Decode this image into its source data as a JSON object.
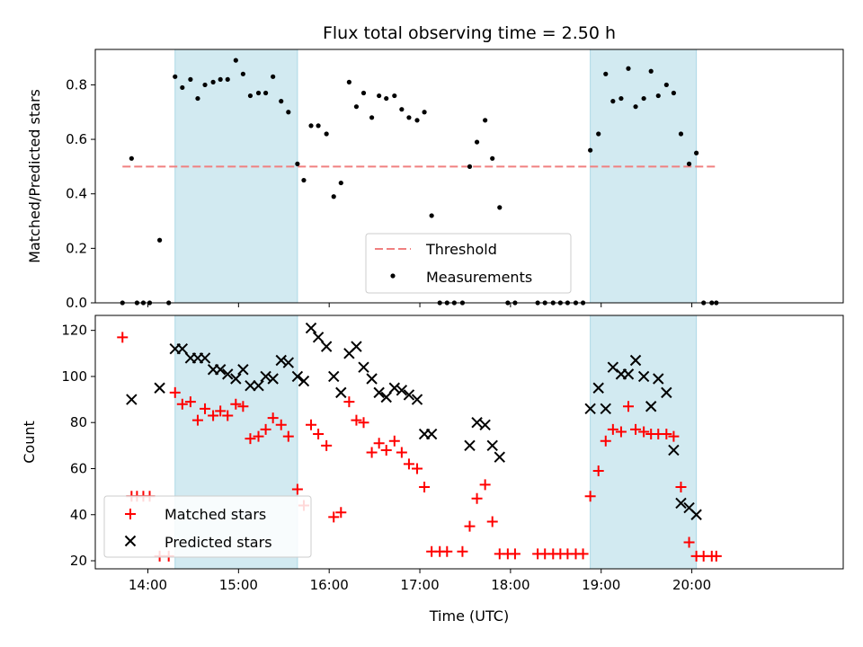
{
  "chart_data": [
    {
      "type": "scatter",
      "title": "Flux total observing time = 2.50 h",
      "xlabel": "",
      "ylabel": "Matched/Predicted stars",
      "ylim": [
        0,
        0.93
      ],
      "yticks": [
        0.0,
        0.2,
        0.4,
        0.6,
        0.8
      ],
      "ytick_labels": [
        "0.0",
        "0.2",
        "0.4",
        "0.6",
        "0.8"
      ],
      "xlim_hours": [
        13.42,
        21.67
      ],
      "xtick_hours": [
        14,
        15,
        16,
        17,
        18,
        19,
        20
      ],
      "shaded_intervals_hours": [
        [
          14.3,
          15.65
        ],
        [
          18.88,
          20.05
        ]
      ],
      "shade_color": "#add8e6",
      "threshold": {
        "name": "Threshold",
        "value": 0.5,
        "x_range_hours": [
          13.72,
          20.27
        ],
        "color": "#f08080"
      },
      "legend_position": "lower center",
      "series": [
        {
          "name": "Measurements",
          "color": "#000000",
          "x": [
            13.72,
            13.82,
            13.88,
            13.95,
            14.02,
            14.13,
            14.23,
            14.3,
            14.38,
            14.47,
            14.55,
            14.63,
            14.72,
            14.8,
            14.88,
            14.97,
            15.05,
            15.13,
            15.22,
            15.3,
            15.38,
            15.47,
            15.55,
            15.65,
            15.72,
            15.8,
            15.88,
            15.97,
            16.05,
            16.13,
            16.22,
            16.3,
            16.38,
            16.47,
            16.55,
            16.63,
            16.72,
            16.8,
            16.88,
            16.97,
            17.05,
            17.13,
            17.22,
            17.3,
            17.38,
            17.47,
            17.55,
            17.63,
            17.72,
            17.8,
            17.88,
            17.97,
            18.05,
            18.3,
            18.38,
            18.47,
            18.55,
            18.63,
            18.72,
            18.8,
            18.88,
            18.97,
            19.05,
            19.13,
            19.22,
            19.3,
            19.38,
            19.47,
            19.55,
            19.63,
            19.72,
            19.8,
            19.88,
            19.97,
            20.05,
            20.13,
            20.22,
            20.27
          ],
          "y": [
            0.0,
            0.53,
            0.0,
            0.0,
            0.0,
            0.23,
            0.0,
            0.83,
            0.79,
            0.82,
            0.75,
            0.8,
            0.81,
            0.82,
            0.82,
            0.89,
            0.84,
            0.76,
            0.77,
            0.77,
            0.83,
            0.74,
            0.7,
            0.51,
            0.45,
            0.65,
            0.65,
            0.62,
            0.39,
            0.44,
            0.81,
            0.72,
            0.77,
            0.68,
            0.76,
            0.75,
            0.76,
            0.71,
            0.68,
            0.67,
            0.7,
            0.32,
            0.0,
            0.0,
            0.0,
            0.0,
            0.5,
            0.59,
            0.67,
            0.53,
            0.35,
            0.0,
            0.0,
            0.0,
            0.0,
            0.0,
            0.0,
            0.0,
            0.0,
            0.0,
            0.56,
            0.62,
            0.84,
            0.74,
            0.75,
            0.86,
            0.72,
            0.75,
            0.85,
            0.76,
            0.8,
            0.77,
            0.62,
            0.51,
            0.55,
            0.0,
            0.0,
            0.0
          ]
        }
      ]
    },
    {
      "type": "scatter",
      "title": "",
      "xlabel": "Time (UTC)",
      "ylabel": "Count",
      "ylim": [
        16.5,
        126.5
      ],
      "yticks": [
        20,
        40,
        60,
        80,
        100,
        120
      ],
      "ytick_labels": [
        "20",
        "40",
        "60",
        "80",
        "100",
        "120"
      ],
      "xlim_hours": [
        13.42,
        21.67
      ],
      "xtick_hours": [
        14,
        15,
        16,
        17,
        18,
        19,
        20
      ],
      "xtick_labels": [
        "14:00",
        "15:00",
        "16:00",
        "17:00",
        "18:00",
        "19:00",
        "20:00"
      ],
      "shaded_intervals_hours": [
        [
          14.3,
          15.65
        ],
        [
          18.88,
          20.05
        ]
      ],
      "shade_color": "#add8e6",
      "legend_position": "lower left",
      "series": [
        {
          "name": "Matched stars",
          "color": "#ff0000",
          "marker": "+",
          "x": [
            13.72,
            13.82,
            13.88,
            13.95,
            14.02,
            14.13,
            14.23,
            14.3,
            14.38,
            14.47,
            14.55,
            14.63,
            14.72,
            14.8,
            14.88,
            14.97,
            15.05,
            15.13,
            15.22,
            15.3,
            15.38,
            15.47,
            15.55,
            15.65,
            15.72,
            15.8,
            15.88,
            15.97,
            16.05,
            16.13,
            16.22,
            16.3,
            16.38,
            16.47,
            16.55,
            16.63,
            16.72,
            16.8,
            16.88,
            16.97,
            17.05,
            17.13,
            17.22,
            17.3,
            17.47,
            17.55,
            17.63,
            17.72,
            17.8,
            17.88,
            17.97,
            18.05,
            18.3,
            18.38,
            18.47,
            18.55,
            18.63,
            18.72,
            18.8,
            18.88,
            18.97,
            19.05,
            19.13,
            19.22,
            19.3,
            19.38,
            19.47,
            19.55,
            19.63,
            19.72,
            19.8,
            19.88,
            19.97,
            20.05,
            20.13,
            20.22,
            20.27
          ],
          "y": [
            117,
            48,
            48,
            48,
            48,
            22,
            22,
            93,
            88,
            89,
            81,
            86,
            83,
            85,
            83,
            88,
            87,
            73,
            74,
            77,
            82,
            79,
            74,
            51,
            44,
            79,
            75,
            70,
            39,
            41,
            89,
            81,
            80,
            67,
            71,
            68,
            72,
            67,
            62,
            60,
            52,
            24,
            24,
            24,
            24,
            35,
            47,
            53,
            37,
            23,
            23,
            23,
            23,
            23,
            23,
            23,
            23,
            23,
            23,
            48,
            59,
            72,
            77,
            76,
            87,
            77,
            76,
            75,
            75,
            75,
            74,
            52,
            28,
            22,
            22,
            22,
            22
          ]
        },
        {
          "name": "Predicted stars",
          "color": "#000000",
          "marker": "x",
          "x": [
            13.82,
            14.13,
            14.3,
            14.38,
            14.47,
            14.55,
            14.63,
            14.72,
            14.8,
            14.88,
            14.97,
            15.05,
            15.13,
            15.22,
            15.3,
            15.38,
            15.47,
            15.55,
            15.65,
            15.72,
            15.8,
            15.88,
            15.97,
            16.05,
            16.13,
            16.22,
            16.3,
            16.38,
            16.47,
            16.55,
            16.63,
            16.72,
            16.8,
            16.88,
            16.97,
            17.05,
            17.13,
            17.55,
            17.63,
            17.72,
            17.8,
            17.88,
            18.88,
            18.97,
            19.05,
            19.13,
            19.22,
            19.3,
            19.38,
            19.47,
            19.55,
            19.63,
            19.72,
            19.8,
            19.88,
            19.97,
            20.05
          ],
          "y": [
            90,
            95,
            112,
            112,
            108,
            108,
            108,
            103,
            103,
            101,
            99,
            103,
            96,
            96,
            100,
            99,
            107,
            106,
            100,
            98,
            121,
            117,
            113,
            100,
            93,
            110,
            113,
            104,
            99,
            93,
            91,
            95,
            94,
            92,
            90,
            75,
            75,
            70,
            80,
            79,
            70,
            65,
            86,
            95,
            86,
            104,
            101,
            101,
            107,
            100,
            87,
            99,
            93,
            68,
            45,
            43,
            40
          ]
        }
      ]
    }
  ]
}
